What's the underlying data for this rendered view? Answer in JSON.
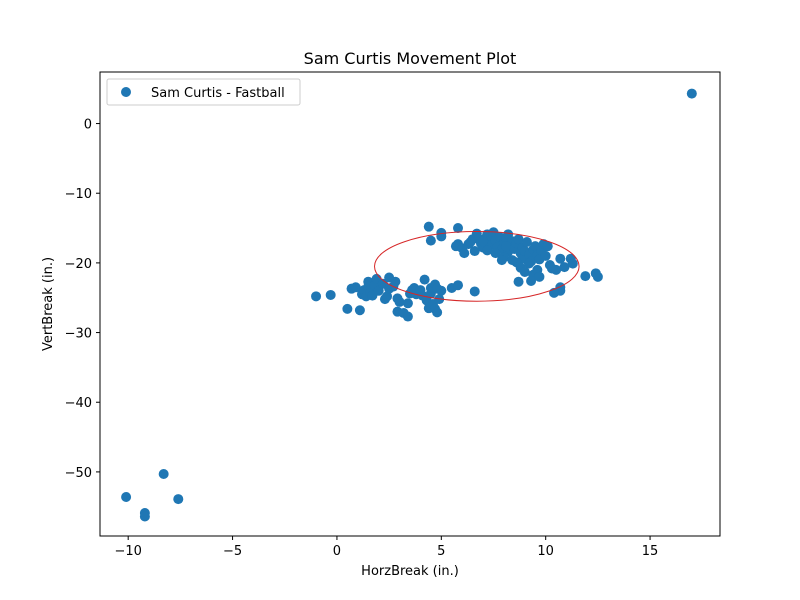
{
  "chart_data": {
    "type": "scatter",
    "title": "Sam Curtis Movement Plot",
    "xlabel": "HorzBreak (in.)",
    "ylabel": "VertBreak (in.)",
    "xlim": [
      -11.35,
      18.35
    ],
    "ylim": [
      -59.2,
      7.4
    ],
    "xticks": [
      -10,
      -5,
      0,
      5,
      10,
      15
    ],
    "yticks": [
      0,
      -10,
      -20,
      -30,
      -40,
      -50
    ],
    "grid": false,
    "legend_placement": "top-left",
    "series": [
      {
        "name": "Sam Curtis - Fastball",
        "color": "#1f77b4",
        "points": [
          [
            17.0,
            4.3
          ],
          [
            -10.1,
            -53.6
          ],
          [
            -8.3,
            -50.3
          ],
          [
            -7.6,
            -53.9
          ],
          [
            -9.2,
            -55.9
          ],
          [
            -9.2,
            -56.4
          ],
          [
            4.4,
            -14.8
          ],
          [
            5.8,
            -15.0
          ],
          [
            4.5,
            -16.8
          ],
          [
            5.0,
            -15.7
          ],
          [
            5.0,
            -16.2
          ],
          [
            5.8,
            -17.3
          ],
          [
            5.7,
            -17.6
          ],
          [
            6.0,
            -17.9
          ],
          [
            6.1,
            -18.6
          ],
          [
            6.5,
            -16.6
          ],
          [
            6.7,
            -15.8
          ],
          [
            6.8,
            -16.6
          ],
          [
            6.9,
            -17.2
          ],
          [
            7.0,
            -17.8
          ],
          [
            7.1,
            -16.5
          ],
          [
            7.2,
            -15.9
          ],
          [
            7.3,
            -16.9
          ],
          [
            7.4,
            -17.4
          ],
          [
            7.5,
            -16.1
          ],
          [
            7.5,
            -15.6
          ],
          [
            7.6,
            -16.8
          ],
          [
            7.7,
            -17.7
          ],
          [
            7.8,
            -16.3
          ],
          [
            7.9,
            -18.0
          ],
          [
            8.0,
            -17.1
          ],
          [
            8.1,
            -16.5
          ],
          [
            8.2,
            -15.9
          ],
          [
            8.2,
            -18.4
          ],
          [
            8.3,
            -17.5
          ],
          [
            8.4,
            -16.9
          ],
          [
            8.5,
            -18.0
          ],
          [
            8.6,
            -17.2
          ],
          [
            8.7,
            -16.6
          ],
          [
            8.8,
            -18.6
          ],
          [
            8.9,
            -17.8
          ],
          [
            8.9,
            -19.4
          ],
          [
            9.0,
            -18.3
          ],
          [
            9.1,
            -17.0
          ],
          [
            9.2,
            -18.8
          ],
          [
            9.3,
            -19.8
          ],
          [
            9.4,
            -18.1
          ],
          [
            9.5,
            -17.6
          ],
          [
            9.6,
            -18.9
          ],
          [
            9.7,
            -19.5
          ],
          [
            9.8,
            -18.2
          ],
          [
            9.9,
            -17.3
          ],
          [
            10.0,
            -19.0
          ],
          [
            10.1,
            -17.6
          ],
          [
            10.2,
            -20.3
          ],
          [
            8.6,
            -19.9
          ],
          [
            8.8,
            -20.7
          ],
          [
            9.0,
            -21.3
          ],
          [
            9.2,
            -20.1
          ],
          [
            9.4,
            -21.7
          ],
          [
            9.3,
            -22.6
          ],
          [
            9.6,
            -21.0
          ],
          [
            9.7,
            -22.0
          ],
          [
            10.3,
            -20.8
          ],
          [
            10.5,
            -21.0
          ],
          [
            8.7,
            -22.7
          ],
          [
            6.3,
            -17.3
          ],
          [
            6.6,
            -18.3
          ],
          [
            7.2,
            -18.2
          ],
          [
            7.6,
            -18.6
          ],
          [
            8.0,
            -19.2
          ],
          [
            8.4,
            -19.6
          ],
          [
            7.9,
            -19.6
          ],
          [
            8.1,
            -17.6
          ],
          [
            7.0,
            -16.9
          ],
          [
            6.4,
            -17.0
          ],
          [
            10.7,
            -19.4
          ],
          [
            10.9,
            -20.6
          ],
          [
            11.2,
            -19.4
          ],
          [
            11.3,
            -20.1
          ],
          [
            10.7,
            -23.5
          ],
          [
            10.7,
            -24.0
          ],
          [
            10.4,
            -24.3
          ],
          [
            11.9,
            -21.9
          ],
          [
            12.4,
            -21.5
          ],
          [
            12.5,
            -22.0
          ],
          [
            -1.0,
            -24.8
          ],
          [
            -0.3,
            -24.6
          ],
          [
            0.5,
            -26.6
          ],
          [
            0.7,
            -23.7
          ],
          [
            0.9,
            -23.5
          ],
          [
            1.1,
            -26.8
          ],
          [
            1.2,
            -24.5
          ],
          [
            1.3,
            -23.9
          ],
          [
            1.4,
            -24.8
          ],
          [
            1.5,
            -23.4
          ],
          [
            1.5,
            -22.7
          ],
          [
            1.6,
            -24.3
          ],
          [
            1.7,
            -24.7
          ],
          [
            1.8,
            -23.2
          ],
          [
            1.9,
            -22.3
          ],
          [
            2.0,
            -24.0
          ],
          [
            2.2,
            -23.0
          ],
          [
            2.3,
            -25.2
          ],
          [
            2.4,
            -24.8
          ],
          [
            2.5,
            -23.7
          ],
          [
            2.5,
            -22.1
          ],
          [
            2.7,
            -23.4
          ],
          [
            2.8,
            -22.7
          ],
          [
            2.9,
            -25.1
          ],
          [
            3.0,
            -25.6
          ],
          [
            2.9,
            -27.0
          ],
          [
            3.2,
            -27.2
          ],
          [
            3.4,
            -27.7
          ],
          [
            3.4,
            -25.8
          ],
          [
            3.5,
            -24.4
          ],
          [
            3.6,
            -23.9
          ],
          [
            3.7,
            -23.6
          ],
          [
            3.8,
            -24.5
          ],
          [
            4.0,
            -23.9
          ],
          [
            4.1,
            -24.7
          ],
          [
            4.2,
            -22.4
          ],
          [
            4.3,
            -25.4
          ],
          [
            4.4,
            -26.5
          ],
          [
            4.5,
            -24.4
          ],
          [
            4.5,
            -23.6
          ],
          [
            4.6,
            -25.9
          ],
          [
            4.7,
            -23.1
          ],
          [
            4.7,
            -26.6
          ],
          [
            4.8,
            -27.1
          ],
          [
            4.9,
            -25.2
          ],
          [
            5.0,
            -24.0
          ],
          [
            4.8,
            -23.7
          ],
          [
            5.5,
            -23.6
          ],
          [
            5.8,
            -23.2
          ],
          [
            6.6,
            -24.1
          ]
        ]
      }
    ],
    "annotations": [
      {
        "type": "ellipse",
        "color": "#d62728",
        "center": [
          6.7,
          -20.5
        ],
        "radius_x": 4.9,
        "radius_y": 5.0
      }
    ]
  }
}
